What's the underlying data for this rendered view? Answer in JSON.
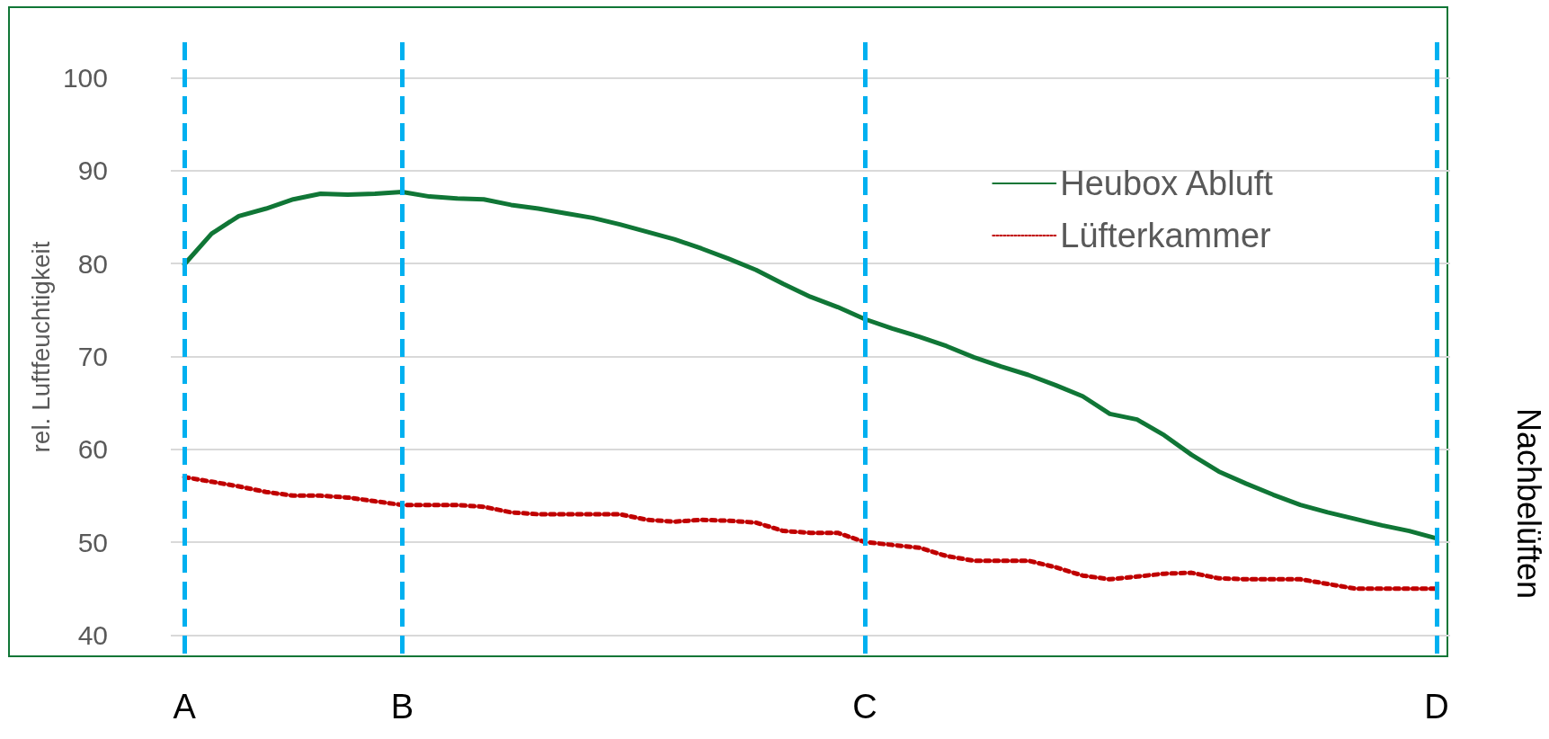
{
  "chart_data": {
    "type": "line",
    "ylabel": "rel. Luftfeuchtigkeit",
    "annotations": [
      "Nachbelüften"
    ],
    "categories": [
      "A",
      null,
      null,
      null,
      null,
      null,
      null,
      null,
      "B",
      null,
      null,
      null,
      null,
      null,
      null,
      null,
      null,
      null,
      null,
      null,
      null,
      null,
      null,
      null,
      null,
      "C",
      null,
      null,
      null,
      null,
      null,
      null,
      null,
      null,
      null,
      null,
      null,
      null,
      null,
      null,
      null,
      null,
      null,
      null,
      null,
      null,
      "D"
    ],
    "ylim": [
      38,
      104
    ],
    "yticks": [
      40,
      50,
      60,
      70,
      80,
      90,
      100
    ],
    "grid": "y",
    "legend": "top right",
    "marker": "none",
    "ref_lines": [
      {
        "axis": "x",
        "value": "A",
        "color": "#00b0f0",
        "line_style": "dashed"
      },
      {
        "axis": "x",
        "value": "B",
        "color": "#00b0f0",
        "line_style": "dashed"
      },
      {
        "axis": "x",
        "value": "C",
        "color": "#00b0f0",
        "line_style": "dashed"
      },
      {
        "axis": "x",
        "value": "D",
        "color": "#00b0f0",
        "line_style": "dashed"
      }
    ],
    "series": [
      {
        "name": "Heubox Abluft",
        "color": "#107636",
        "line_style": "solid",
        "values": [
          79.9,
          83.2,
          85.1,
          85.9,
          86.9,
          87.5,
          87.4,
          87.5,
          87.7,
          87.2,
          87.0,
          86.9,
          86.3,
          85.9,
          85.4,
          84.9,
          84.2,
          83.4,
          82.6,
          81.6,
          80.5,
          79.3,
          77.8,
          76.4,
          75.3,
          74.0,
          73.0,
          72.1,
          71.1,
          69.9,
          68.9,
          68.0,
          66.9,
          65.7,
          63.8,
          63.2,
          61.5,
          59.4,
          57.6,
          56.3,
          55.1,
          54.0,
          53.2,
          52.5,
          51.8,
          51.2,
          50.4
        ]
      },
      {
        "name": "Lüfterkammer",
        "color": "#c00000",
        "line_style": "dotted",
        "values": [
          57,
          56.5,
          56,
          55.4,
          55,
          55,
          54.8,
          54.4,
          54,
          54,
          54,
          53.8,
          53.2,
          53,
          53,
          53,
          53,
          52.4,
          52.2,
          52.4,
          52.3,
          52.1,
          51.2,
          51,
          51,
          50,
          49.7,
          49.4,
          48.5,
          48,
          48,
          48,
          47.3,
          46.4,
          46,
          46.3,
          46.6,
          46.7,
          46.1,
          46,
          46,
          46,
          45.5,
          45,
          45,
          45,
          45
        ]
      }
    ]
  }
}
